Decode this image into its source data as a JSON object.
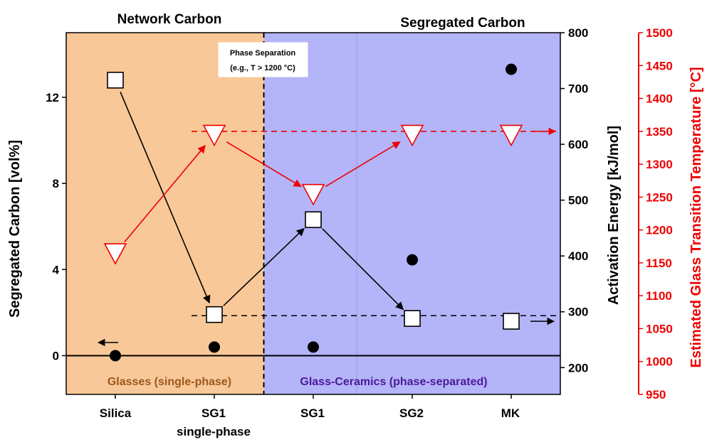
{
  "chart_data": {
    "type": "scatter",
    "headers": {
      "left": "Network Carbon",
      "right": "Segregated Carbon"
    },
    "categories": [
      "Silica",
      "SG1",
      "SG1",
      "SG2",
      "MK"
    ],
    "category_sublabels": [
      "",
      "single-phase",
      "",
      "",
      ""
    ],
    "axes": {
      "y_left": {
        "label": "Segregated Carbon [vol%]",
        "range": [
          -1.8,
          15.0
        ],
        "ticks": [
          0,
          4,
          8,
          12
        ],
        "color": "#000000"
      },
      "y_right_energy": {
        "label": "Activation Energy [kJ/mol]",
        "range": [
          152,
          800
        ],
        "ticks": [
          200,
          300,
          400,
          500,
          600,
          700,
          800
        ],
        "color": "#000000"
      },
      "y_right_temperature": {
        "label": "Estimated Glass Transition Temperature [°C]",
        "range": [
          950,
          1500
        ],
        "ticks": [
          950,
          1000,
          1050,
          1100,
          1150,
          1200,
          1250,
          1300,
          1350,
          1400,
          1450,
          1500
        ],
        "color": "#ee0000"
      }
    },
    "series": [
      {
        "name": "",
        "axis": "y_left",
        "marker": "circle-filled",
        "color": "#000000",
        "values": [
          0.0,
          0.4,
          0.4,
          4.45,
          13.3
        ]
      },
      {
        "name": "",
        "axis": "y_right_energy",
        "marker": "square-open",
        "color": "#000000",
        "values": [
          715,
          295,
          465,
          288,
          283
        ]
      },
      {
        "name": "",
        "axis": "y_right_temperature",
        "marker": "triangle-down-open",
        "color": "#ee0000",
        "values": [
          1165,
          1345,
          1255,
          1345,
          1345
        ]
      }
    ],
    "reference_lines": [
      {
        "axis": "y_left",
        "value": 0,
        "style": "solid",
        "color": "#000000"
      },
      {
        "axis": "y_right_energy",
        "value": 293,
        "style": "dashed",
        "color": "#000000",
        "from": 1,
        "to": 4.5
      },
      {
        "axis": "y_right_temperature",
        "value": 1350,
        "style": "dashed",
        "color": "#ee0000",
        "from": 1,
        "to": 4.5
      }
    ],
    "regions": [
      {
        "label": "Glasses (single-phase)",
        "from": -0.5,
        "to": 1.5,
        "color": "#f9c898",
        "label_color": "#9a5a1e"
      },
      {
        "label": "Glass-Ceramics (phase-separated)",
        "from": 1.5,
        "to": 4.5,
        "color": "#b4b4f8",
        "label_color": "#4b1a99"
      }
    ],
    "annotations": [
      {
        "text": "Phase Separation",
        "line": 1
      },
      {
        "text": "(e.g., T > 1200 °C)",
        "line": 2
      }
    ],
    "grid": false,
    "legend": "none"
  }
}
